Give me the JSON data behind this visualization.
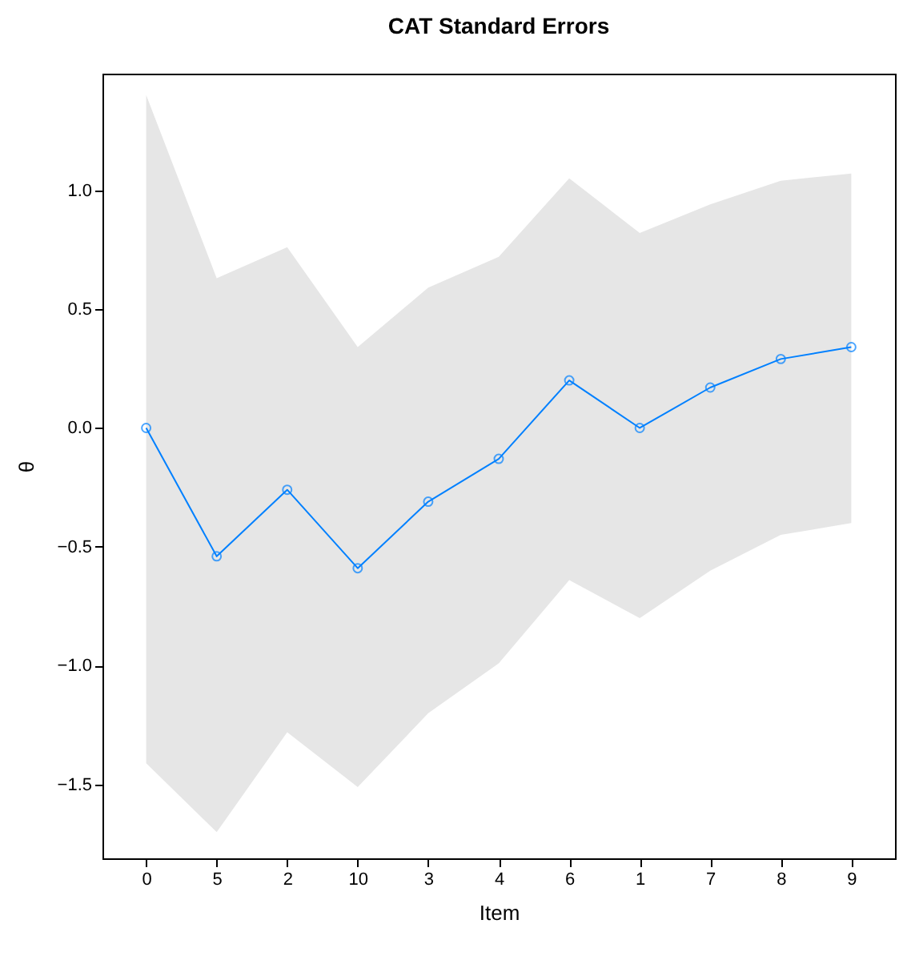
{
  "chart_data": {
    "type": "line",
    "title": "CAT Standard Errors",
    "xlabel": "Item",
    "ylabel": "θ",
    "categories": [
      "0",
      "5",
      "2",
      "10",
      "3",
      "4",
      "6",
      "1",
      "7",
      "8",
      "9"
    ],
    "series": [
      {
        "color": "#0080ff",
        "values": [
          0,
          -0.54,
          -0.26,
          -0.59,
          -0.31,
          -0.13,
          0.2,
          0,
          0.17,
          0.29,
          0.34
        ],
        "lower": [
          -1.41,
          -1.7,
          -1.28,
          -1.51,
          -1.2,
          -0.99,
          -0.64,
          -0.8,
          -0.6,
          -0.45,
          -0.4
        ],
        "upper": [
          1.4,
          0.63,
          0.76,
          0.34,
          0.59,
          0.72,
          1.05,
          0.82,
          0.94,
          1.04,
          1.07
        ]
      }
    ],
    "ylim": [
      -1.81,
      1.49
    ],
    "yticks": [
      -1.5,
      {
        "value": -1,
        "label": "−1.0"
      },
      -0.5,
      {
        "value": 0,
        "label": "0.0"
      },
      0.5,
      {
        "value": 1,
        "label": "1.0"
      }
    ],
    "marker": "circle",
    "grid": false,
    "line_style": "solid"
  }
}
